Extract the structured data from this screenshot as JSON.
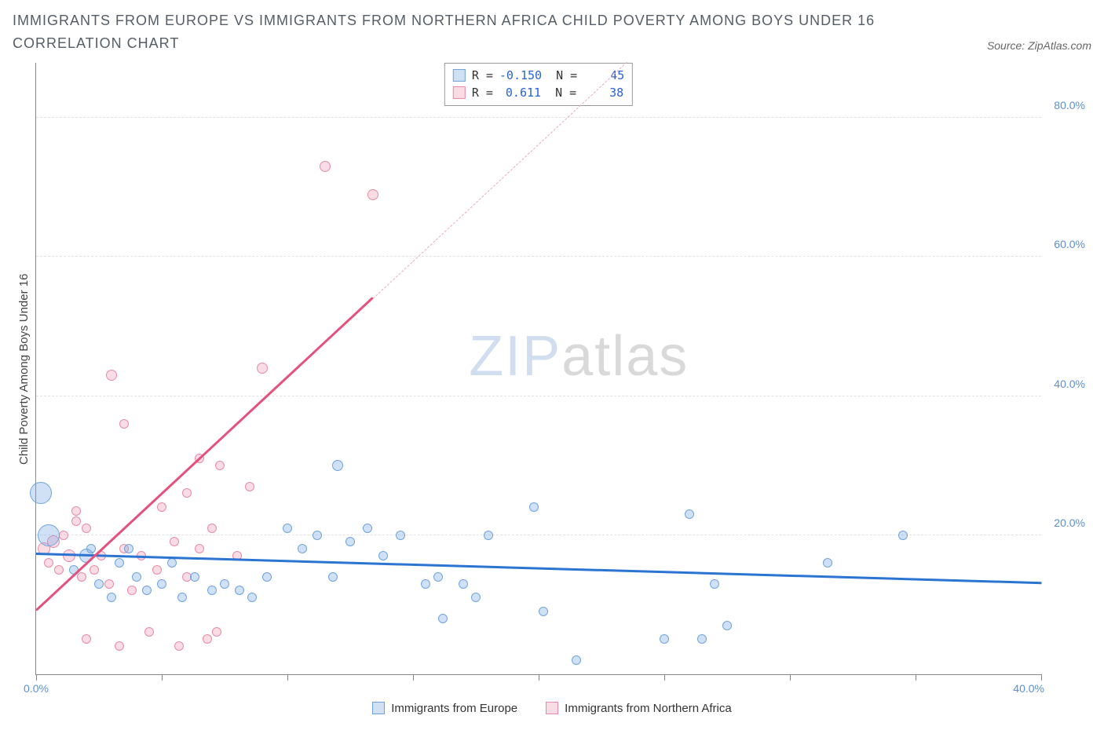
{
  "title": "IMMIGRANTS FROM EUROPE VS IMMIGRANTS FROM NORTHERN AFRICA CHILD POVERTY AMONG BOYS UNDER 16 CORRELATION CHART",
  "source_label": "Source: ZipAtlas.com",
  "ylabel": "Child Poverty Among Boys Under 16",
  "watermark_a": "ZIP",
  "watermark_b": "atlas",
  "axes": {
    "xlim": [
      0,
      40
    ],
    "ylim": [
      0,
      88
    ],
    "x_ticks": [
      0,
      5,
      10,
      15,
      20,
      25,
      30,
      35,
      40
    ],
    "x_tick_labels_shown": {
      "left": "0.0%",
      "right": "40.0%"
    },
    "y_gridlines": [
      20,
      40,
      60,
      80
    ],
    "y_tick_labels": [
      "20.0%",
      "40.0%",
      "60.0%",
      "80.0%"
    ],
    "tick_label_color": "#5b8fd6",
    "grid_color": "#e2e2e2",
    "axis_color": "#888888"
  },
  "series": {
    "europe": {
      "label": "Immigrants from Europe",
      "fill": "rgba(120,170,230,0.35)",
      "stroke": "#6fa3dd",
      "line_color": "#2b74d1",
      "R": "-0.150",
      "N": "45",
      "regression": {
        "x1": 0,
        "y1": 17.2,
        "x2": 40,
        "y2": 13.0
      },
      "points": [
        {
          "x": 0.2,
          "y": 26,
          "r": 14
        },
        {
          "x": 0.5,
          "y": 20,
          "r": 14
        },
        {
          "x": 1.5,
          "y": 15,
          "r": 6
        },
        {
          "x": 2.0,
          "y": 17,
          "r": 9
        },
        {
          "x": 2.2,
          "y": 18,
          "r": 6
        },
        {
          "x": 2.5,
          "y": 13,
          "r": 6
        },
        {
          "x": 3.0,
          "y": 11,
          "r": 6
        },
        {
          "x": 3.3,
          "y": 16,
          "r": 6
        },
        {
          "x": 3.7,
          "y": 18,
          "r": 6
        },
        {
          "x": 4.0,
          "y": 14,
          "r": 6
        },
        {
          "x": 4.4,
          "y": 12,
          "r": 6
        },
        {
          "x": 5.0,
          "y": 13,
          "r": 6
        },
        {
          "x": 5.4,
          "y": 16,
          "r": 6
        },
        {
          "x": 5.8,
          "y": 11,
          "r": 6
        },
        {
          "x": 6.3,
          "y": 14,
          "r": 6
        },
        {
          "x": 7.0,
          "y": 12,
          "r": 6
        },
        {
          "x": 7.5,
          "y": 13,
          "r": 6
        },
        {
          "x": 8.1,
          "y": 12,
          "r": 6
        },
        {
          "x": 8.6,
          "y": 11,
          "r": 6
        },
        {
          "x": 9.2,
          "y": 14,
          "r": 6
        },
        {
          "x": 10.0,
          "y": 21,
          "r": 6
        },
        {
          "x": 10.6,
          "y": 18,
          "r": 6
        },
        {
          "x": 11.2,
          "y": 20,
          "r": 6
        },
        {
          "x": 11.8,
          "y": 14,
          "r": 6
        },
        {
          "x": 12.0,
          "y": 30,
          "r": 7
        },
        {
          "x": 12.5,
          "y": 19,
          "r": 6
        },
        {
          "x": 13.2,
          "y": 21,
          "r": 6
        },
        {
          "x": 13.8,
          "y": 17,
          "r": 6
        },
        {
          "x": 14.5,
          "y": 20,
          "r": 6
        },
        {
          "x": 15.5,
          "y": 13,
          "r": 6
        },
        {
          "x": 16.0,
          "y": 14,
          "r": 6
        },
        {
          "x": 16.2,
          "y": 8,
          "r": 6
        },
        {
          "x": 17.0,
          "y": 13,
          "r": 6
        },
        {
          "x": 17.5,
          "y": 11,
          "r": 6
        },
        {
          "x": 18.0,
          "y": 20,
          "r": 6
        },
        {
          "x": 19.8,
          "y": 24,
          "r": 6
        },
        {
          "x": 20.2,
          "y": 9,
          "r": 6
        },
        {
          "x": 21.5,
          "y": 2,
          "r": 6
        },
        {
          "x": 25.0,
          "y": 5,
          "r": 6
        },
        {
          "x": 26.0,
          "y": 23,
          "r": 6
        },
        {
          "x": 26.5,
          "y": 5,
          "r": 6
        },
        {
          "x": 27.0,
          "y": 13,
          "r": 6
        },
        {
          "x": 31.5,
          "y": 16,
          "r": 6
        },
        {
          "x": 34.5,
          "y": 20,
          "r": 6
        },
        {
          "x": 27.5,
          "y": 7,
          "r": 6
        }
      ]
    },
    "nafrica": {
      "label": "Immigrants from Northern Africa",
      "fill": "rgba(240,140,170,0.30)",
      "stroke": "#e88aa8",
      "line_color": "#e5517c",
      "dash_color": "#eda8be",
      "R": "0.611",
      "N": "38",
      "regression_solid": {
        "x1": 0,
        "y1": 9,
        "x2": 13.4,
        "y2": 54
      },
      "regression_dash": {
        "x1": 13.4,
        "y1": 54,
        "x2": 23.5,
        "y2": 88
      },
      "points": [
        {
          "x": 0.3,
          "y": 18,
          "r": 8
        },
        {
          "x": 0.5,
          "y": 16,
          "r": 6
        },
        {
          "x": 0.7,
          "y": 19,
          "r": 8
        },
        {
          "x": 0.9,
          "y": 15,
          "r": 6
        },
        {
          "x": 1.1,
          "y": 20,
          "r": 6
        },
        {
          "x": 1.3,
          "y": 17,
          "r": 8
        },
        {
          "x": 1.6,
          "y": 22,
          "r": 6
        },
        {
          "x": 1.6,
          "y": 23.5,
          "r": 6
        },
        {
          "x": 1.8,
          "y": 14,
          "r": 6
        },
        {
          "x": 2.0,
          "y": 21,
          "r": 6
        },
        {
          "x": 2.3,
          "y": 15,
          "r": 6
        },
        {
          "x": 2.0,
          "y": 5,
          "r": 6
        },
        {
          "x": 2.6,
          "y": 17,
          "r": 6
        },
        {
          "x": 2.9,
          "y": 13,
          "r": 6
        },
        {
          "x": 3.0,
          "y": 43,
          "r": 7
        },
        {
          "x": 3.3,
          "y": 4,
          "r": 6
        },
        {
          "x": 3.5,
          "y": 18,
          "r": 6
        },
        {
          "x": 3.5,
          "y": 36,
          "r": 6
        },
        {
          "x": 3.8,
          "y": 12,
          "r": 6
        },
        {
          "x": 4.2,
          "y": 17,
          "r": 6
        },
        {
          "x": 4.5,
          "y": 6,
          "r": 6
        },
        {
          "x": 4.8,
          "y": 15,
          "r": 6
        },
        {
          "x": 5.0,
          "y": 24,
          "r": 6
        },
        {
          "x": 5.5,
          "y": 19,
          "r": 6
        },
        {
          "x": 5.7,
          "y": 4,
          "r": 6
        },
        {
          "x": 6.0,
          "y": 14,
          "r": 6
        },
        {
          "x": 6.0,
          "y": 26,
          "r": 6
        },
        {
          "x": 6.5,
          "y": 18,
          "r": 6
        },
        {
          "x": 6.5,
          "y": 31,
          "r": 6
        },
        {
          "x": 6.8,
          "y": 5,
          "r": 6
        },
        {
          "x": 7.0,
          "y": 21,
          "r": 6
        },
        {
          "x": 7.3,
          "y": 30,
          "r": 6
        },
        {
          "x": 7.2,
          "y": 6,
          "r": 6
        },
        {
          "x": 8.0,
          "y": 17,
          "r": 6
        },
        {
          "x": 9.0,
          "y": 44,
          "r": 7
        },
        {
          "x": 8.5,
          "y": 27,
          "r": 6
        },
        {
          "x": 11.5,
          "y": 73,
          "r": 7
        },
        {
          "x": 13.4,
          "y": 69,
          "r": 7
        }
      ]
    }
  },
  "legend_top": {
    "r_label": "R =",
    "n_label": "N ="
  }
}
